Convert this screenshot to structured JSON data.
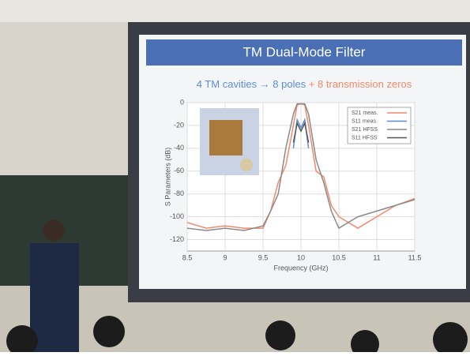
{
  "slide": {
    "title": "TM Dual-Mode Filter",
    "subtitle_poles": "4 TM cavities → 8 poles",
    "subtitle_zeros": "+ 8 transmission zeros"
  },
  "chart_data": {
    "type": "line",
    "x_label": "Frequency (GHz)",
    "y_label": "S Parameters (dB)",
    "x": [
      8.5,
      8.75,
      9.0,
      9.25,
      9.5,
      9.6,
      9.7,
      9.8,
      9.9,
      9.95,
      10.0,
      10.05,
      10.1,
      10.2,
      10.3,
      10.4,
      10.5,
      10.75,
      11.0,
      11.25,
      11.5
    ],
    "series": [
      {
        "name": "S21 meas.",
        "color": "#f4896b",
        "values": [
          -105,
          -110,
          -108,
          -110,
          -110,
          -95,
          -70,
          -55,
          -20,
          -2,
          -1,
          -2,
          -20,
          -60,
          -65,
          -90,
          -100,
          -110,
          -100,
          -90,
          -84
        ]
      },
      {
        "name": "S11 meas.",
        "color": "#5b8ede",
        "values": [
          null,
          null,
          null,
          null,
          null,
          null,
          null,
          null,
          -40,
          -15,
          -22,
          -15,
          -40,
          null,
          null,
          null,
          null,
          null,
          null,
          null,
          null
        ]
      },
      {
        "name": "S21 HFSS",
        "color": "#8a8a8a",
        "values": [
          -110,
          -112,
          -110,
          -112,
          -108,
          -95,
          -80,
          -40,
          -10,
          -1,
          -1,
          -1,
          -10,
          -50,
          -70,
          -95,
          -110,
          -100,
          -95,
          -90,
          -85
        ]
      },
      {
        "name": "S11 HFSS",
        "color": "#555555",
        "values": [
          null,
          null,
          null,
          null,
          null,
          null,
          null,
          null,
          -35,
          -18,
          -25,
          -18,
          -35,
          null,
          null,
          null,
          null,
          null,
          null,
          null,
          null
        ]
      }
    ],
    "xlim": [
      8.5,
      11.5
    ],
    "xticks": [
      8.5,
      9,
      9.5,
      10,
      10.5,
      11,
      11.5
    ],
    "ylim": [
      -130,
      0
    ],
    "yticks": [
      0,
      -20,
      -40,
      -60,
      -80,
      -100,
      -120
    ],
    "grid": true
  }
}
